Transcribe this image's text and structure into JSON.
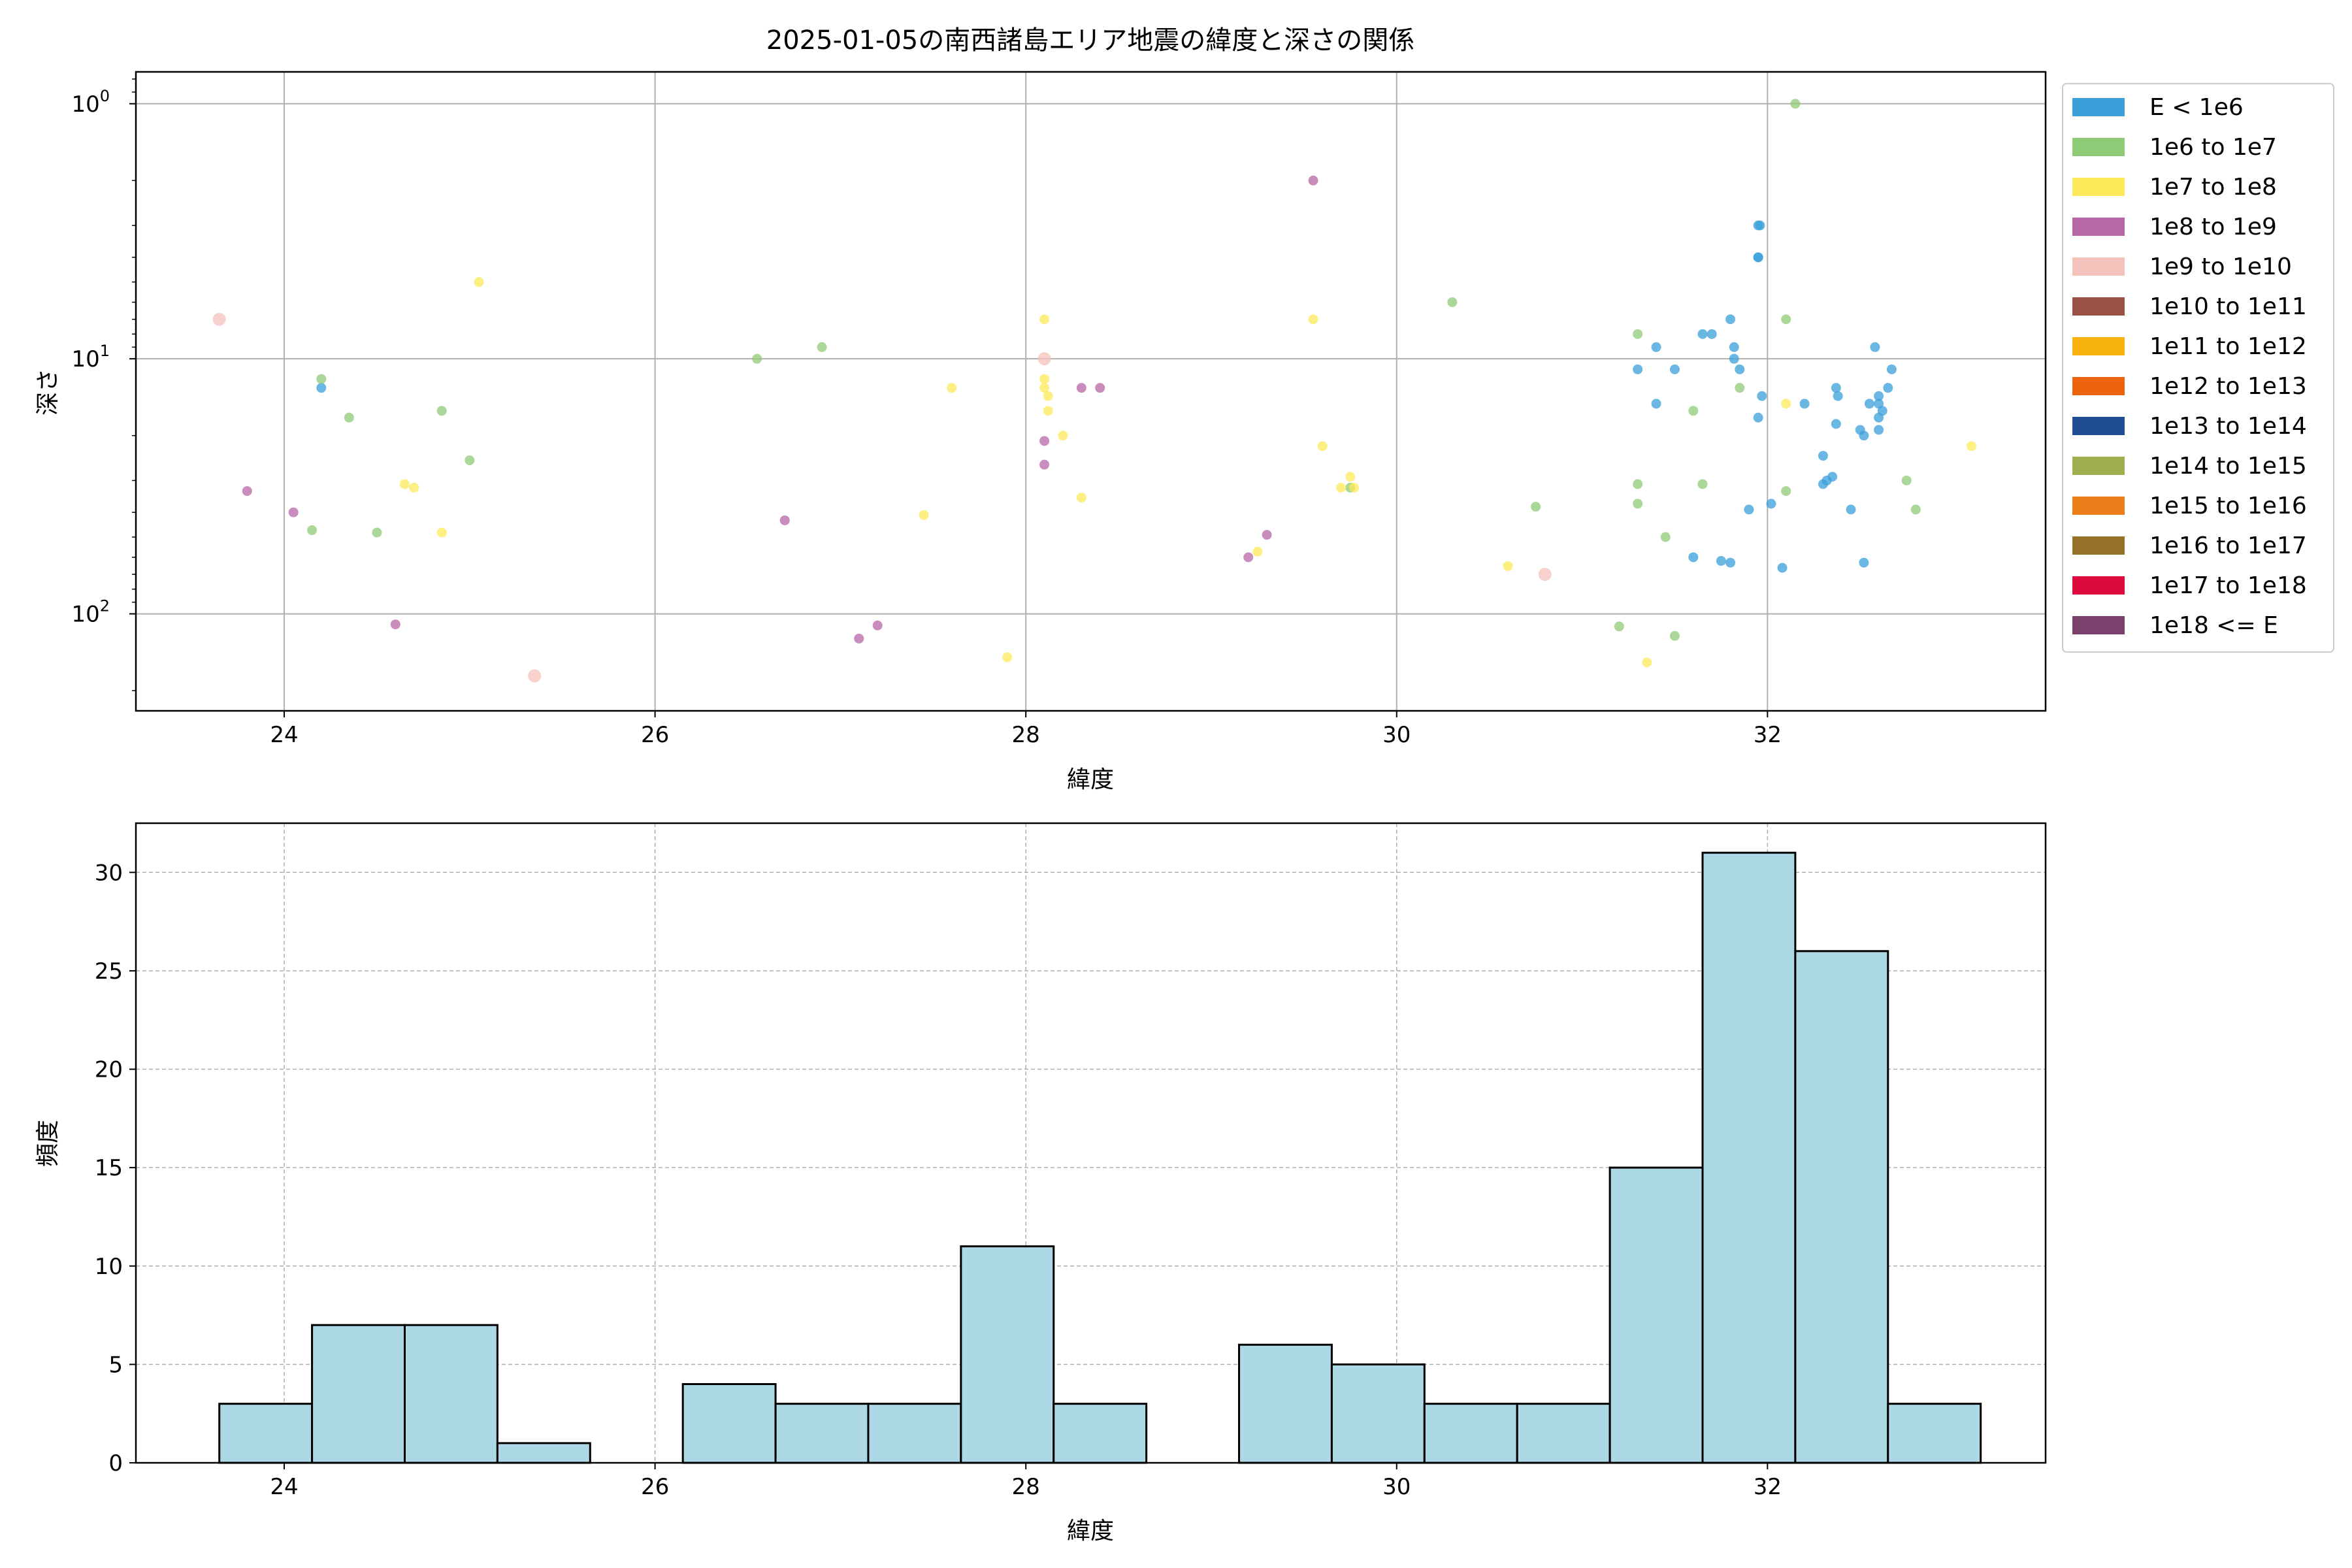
{
  "chart_data": [
    {
      "type": "scatter",
      "title": "2025-01-05の南西諸島エリア地震の緯度と深さの関係",
      "xlabel": "緯度",
      "ylabel": "深さ",
      "xlim": [
        23.2,
        33.5
      ],
      "ylim": [
        0.75,
        240
      ],
      "y_scale": "log",
      "y_inverted": true,
      "grid": true,
      "x_ticks": [
        24,
        26,
        28,
        30,
        32
      ],
      "x_tick_labels": [
        "24",
        "26",
        "28",
        "30",
        "32"
      ],
      "y_ticks": [
        1,
        10,
        100
      ],
      "y_tick_base": "10",
      "y_tick_exponents": [
        "0",
        "1",
        "2"
      ],
      "legend_position": "outside-right",
      "legend": [
        {
          "label": "E < 1e6",
          "color": "#3a9fdb"
        },
        {
          "label": "1e6 to 1e7",
          "color": "#8fca77"
        },
        {
          "label": "1e7 to 1e8",
          "color": "#fde95a"
        },
        {
          "label": "1e8 to 1e9",
          "color": "#b766a6"
        },
        {
          "label": "1e9 to 1e10",
          "color": "#f5c2bb"
        },
        {
          "label": "1e10 to 1e11",
          "color": "#9a5245"
        },
        {
          "label": "1e11 to 1e12",
          "color": "#f8b20d"
        },
        {
          "label": "1e12 to 1e13",
          "color": "#ec6410"
        },
        {
          "label": "1e13 to 1e14",
          "color": "#1f4d93"
        },
        {
          "label": "1e14 to 1e15",
          "color": "#9fae4f"
        },
        {
          "label": "1e15 to 1e16",
          "color": "#ee7e1a"
        },
        {
          "label": "1e16 to 1e17",
          "color": "#947228"
        },
        {
          "label": "1e17 to 1e18",
          "color": "#dc0a3c"
        },
        {
          "label": "1e18 <= E",
          "color": "#7b406b"
        }
      ],
      "series": [
        {
          "label": "E < 1e6",
          "points": [
            [
              24.2,
              13
            ],
            [
              31.3,
              11
            ],
            [
              31.4,
              9
            ],
            [
              31.4,
              15
            ],
            [
              31.5,
              11
            ],
            [
              31.6,
              60
            ],
            [
              31.65,
              8
            ],
            [
              31.7,
              8
            ],
            [
              31.75,
              62
            ],
            [
              31.8,
              63
            ],
            [
              31.8,
              7
            ],
            [
              31.82,
              9
            ],
            [
              31.82,
              10
            ],
            [
              31.85,
              11
            ],
            [
              31.9,
              39
            ],
            [
              31.95,
              3
            ],
            [
              31.96,
              3
            ],
            [
              31.95,
              4
            ],
            [
              31.95,
              4
            ],
            [
              31.95,
              17
            ],
            [
              31.97,
              14
            ],
            [
              32.02,
              37
            ],
            [
              32.08,
              66
            ],
            [
              32.2,
              15
            ],
            [
              32.3,
              24
            ],
            [
              32.3,
              31
            ],
            [
              32.32,
              30
            ],
            [
              32.35,
              29
            ],
            [
              32.37,
              13
            ],
            [
              32.37,
              18
            ],
            [
              32.38,
              14
            ],
            [
              32.45,
              39
            ],
            [
              32.5,
              19
            ],
            [
              32.52,
              20
            ],
            [
              32.52,
              63
            ],
            [
              32.55,
              15
            ],
            [
              32.58,
              9
            ],
            [
              32.6,
              14
            ],
            [
              32.6,
              17
            ],
            [
              32.6,
              19
            ],
            [
              32.6,
              15
            ],
            [
              32.62,
              16
            ],
            [
              32.65,
              13
            ],
            [
              32.67,
              11
            ]
          ]
        },
        {
          "label": "1e6 to 1e7",
          "points": [
            [
              24.2,
              12
            ],
            [
              24.35,
              17
            ],
            [
              24.15,
              47
            ],
            [
              24.5,
              48
            ],
            [
              24.85,
              16
            ],
            [
              25.0,
              25
            ],
            [
              26.55,
              10
            ],
            [
              26.9,
              9
            ],
            [
              29.75,
              32
            ],
            [
              30.3,
              6
            ],
            [
              30.75,
              38
            ],
            [
              31.2,
              112
            ],
            [
              31.3,
              8
            ],
            [
              31.3,
              31
            ],
            [
              31.3,
              37
            ],
            [
              31.45,
              50
            ],
            [
              31.5,
              122
            ],
            [
              31.6,
              16
            ],
            [
              31.65,
              31
            ],
            [
              31.85,
              13
            ],
            [
              32.1,
              7
            ],
            [
              32.1,
              33
            ],
            [
              32.15,
              1
            ],
            [
              32.75,
              30
            ],
            [
              32.8,
              39
            ]
          ]
        },
        {
          "label": "1e7 to 1e8",
          "points": [
            [
              24.65,
              31
            ],
            [
              24.7,
              32
            ],
            [
              24.85,
              48
            ],
            [
              25.05,
              5
            ],
            [
              27.45,
              41
            ],
            [
              27.6,
              13
            ],
            [
              27.9,
              148
            ],
            [
              28.1,
              7
            ],
            [
              28.1,
              12
            ],
            [
              28.1,
              13
            ],
            [
              28.12,
              14
            ],
            [
              28.12,
              16
            ],
            [
              28.2,
              20
            ],
            [
              28.3,
              35
            ],
            [
              29.25,
              57
            ],
            [
              29.55,
              7
            ],
            [
              29.6,
              22
            ],
            [
              29.7,
              32
            ],
            [
              29.75,
              29
            ],
            [
              29.77,
              32
            ],
            [
              30.6,
              65
            ],
            [
              31.35,
              155
            ],
            [
              32.1,
              15
            ],
            [
              33.1,
              22
            ]
          ]
        },
        {
          "label": "1e8 to 1e9",
          "points": [
            [
              23.8,
              33
            ],
            [
              24.05,
              40
            ],
            [
              24.6,
              110
            ],
            [
              26.7,
              43
            ],
            [
              27.1,
              125
            ],
            [
              27.2,
              111
            ],
            [
              28.1,
              21
            ],
            [
              28.1,
              26
            ],
            [
              28.3,
              13
            ],
            [
              28.4,
              13
            ],
            [
              29.2,
              60
            ],
            [
              29.3,
              49
            ],
            [
              29.55,
              2
            ]
          ]
        },
        {
          "label": "1e9 to 1e10",
          "points": [
            [
              23.65,
              7
            ],
            [
              25.35,
              175
            ],
            [
              28.1,
              10
            ],
            [
              30.8,
              70
            ]
          ]
        }
      ]
    },
    {
      "type": "bar",
      "xlabel": "緯度",
      "ylabel": "頻度",
      "xlim": [
        23.2,
        33.5
      ],
      "ylim": [
        0,
        32.5
      ],
      "grid": true,
      "x_ticks": [
        24,
        26,
        28,
        30,
        32
      ],
      "x_tick_labels": [
        "24",
        "26",
        "28",
        "30",
        "32"
      ],
      "y_ticks": [
        0,
        5,
        10,
        15,
        20,
        25,
        30
      ],
      "y_tick_labels": [
        "0",
        "5",
        "10",
        "15",
        "20",
        "25",
        "30"
      ],
      "bar_color": "#add8e6",
      "bin_start": 23.65,
      "bin_width": 0.5,
      "values": [
        3,
        7,
        7,
        1,
        0,
        4,
        3,
        3,
        11,
        3,
        0,
        6,
        5,
        3,
        3,
        15,
        31,
        26,
        3
      ]
    }
  ]
}
